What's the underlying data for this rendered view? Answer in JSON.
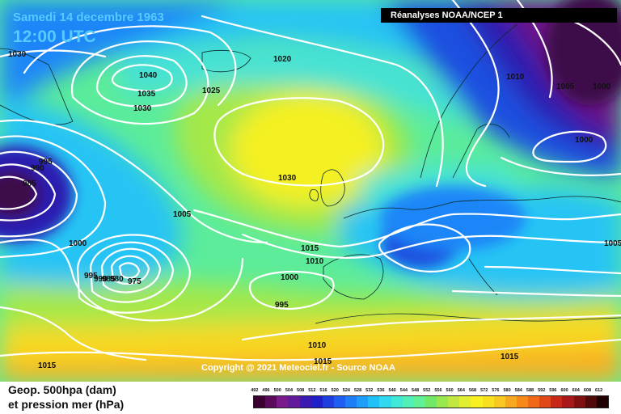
{
  "header": {
    "date": "Samedi 14 decembre 1963",
    "time": "12:00 UTC",
    "source": "Réanalyses NOAA/NCEP 1"
  },
  "copyright": "Copyright @ 2021 Meteociel.fr - Source NOAA",
  "legend": {
    "line1": "Geop. 500hpa (dam)",
    "line2": "et pression mer (hPa)",
    "levels": [
      "492",
      "496",
      "500",
      "504",
      "508",
      "512",
      "516",
      "520",
      "524",
      "528",
      "532",
      "536",
      "540",
      "544",
      "548",
      "552",
      "556",
      "560",
      "564",
      "568",
      "572",
      "576",
      "580",
      "584",
      "588",
      "592",
      "596",
      "600",
      "604",
      "608",
      "612"
    ],
    "colors": [
      "#3a0030",
      "#5a0a5a",
      "#7a1a8a",
      "#601a9a",
      "#3a1ab0",
      "#2020c8",
      "#1e3ee0",
      "#1e5ef0",
      "#1e7ef8",
      "#1e9ef8",
      "#20c0f8",
      "#30d8f0",
      "#40e8d8",
      "#50f0b8",
      "#60f098",
      "#70e868",
      "#98e850",
      "#c0e840",
      "#e0f030",
      "#f8f020",
      "#f8e020",
      "#f8c820",
      "#f8a820",
      "#f88818",
      "#f06818",
      "#e04818",
      "#c82818",
      "#a81818",
      "#801010",
      "#500808",
      "#200000"
    ]
  },
  "map": {
    "colors": {
      "purple_dark": "#3e0a48",
      "purple": "#6a1888",
      "indigo": "#2a1ab0",
      "blue": "#1e4fe0",
      "blue_mid": "#1e86f8",
      "cyan": "#28c4f4",
      "turquoise": "#46e2d6",
      "green": "#5cec9a",
      "lime": "#a4e84a",
      "yellow": "#f4f020",
      "yellow_orange": "#f8d822",
      "orange": "#f8b020"
    },
    "pressure_labels": [
      {
        "text": "1030"
      },
      {
        "text": "1040"
      },
      {
        "text": "1035"
      },
      {
        "text": "1030"
      },
      {
        "text": "1025"
      },
      {
        "text": "1020"
      },
      {
        "text": "1010"
      },
      {
        "text": "1005"
      },
      {
        "text": "1000"
      },
      {
        "text": "1000"
      },
      {
        "text": "995"
      },
      {
        "text": "990"
      },
      {
        "text": "985"
      },
      {
        "text": "1005"
      },
      {
        "text": "1000"
      },
      {
        "text": "995"
      },
      {
        "text": "990"
      },
      {
        "text": "985"
      },
      {
        "text": "980"
      },
      {
        "text": "975"
      },
      {
        "text": "1030"
      },
      {
        "text": "1015"
      },
      {
        "text": "1010"
      },
      {
        "text": "1000"
      },
      {
        "text": "995"
      },
      {
        "text": "1010"
      },
      {
        "text": "1015"
      },
      {
        "text": "1015"
      },
      {
        "text": "1015"
      },
      {
        "text": "1005"
      }
    ]
  }
}
